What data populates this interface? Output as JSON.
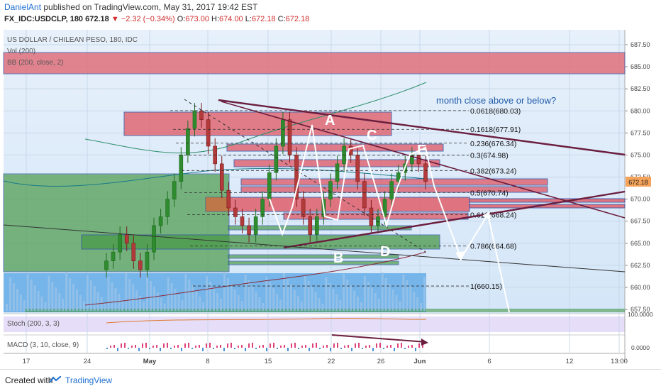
{
  "header": {
    "author": "DanielAnt",
    "published": "published on TradingView.com, May 31, 2017 19:42 EST",
    "symbol": "FX_IDC:USDCLP, 180",
    "last": "672.18",
    "change": "▼ −2.32 (−0.34%)",
    "o_label": "O:",
    "o": "673.00",
    "h_label": "H:",
    "h": "674.00",
    "l_label": "L:",
    "l": "672.18",
    "c_label": "C:",
    "c": "672.18"
  },
  "legend": {
    "pair": "US DOLLAR / CHILEAN PESO, 180, IDC",
    "vol": "Vol (200)",
    "bb": "BB (200, close, 2)",
    "stoch": "Stoch (200, 3, 3)",
    "macd": "MACD (3, 10, close, 9)"
  },
  "annotation": "month close above or below?",
  "wave_labels": [
    "A",
    "B",
    "C",
    "D",
    "E"
  ],
  "fib_levels": [
    {
      "label": "0.0618(680.03)",
      "value": 680.03
    },
    {
      "label": "0.1618(677.91)",
      "value": 677.91
    },
    {
      "label": "0.236(676.34)",
      "value": 676.34
    },
    {
      "label": "0.3(674.98)",
      "value": 674.98
    },
    {
      "label": "0.382(673.24)",
      "value": 673.24
    },
    {
      "label": "0.5(670.74)",
      "value": 670.74
    },
    {
      "label": "0.618(668.24)",
      "value": 668.24
    },
    {
      "label": "0.786(664.68)",
      "value": 664.68
    },
    {
      "label": "1(660.15)",
      "value": 660.15
    }
  ],
  "price_badge": "672.18",
  "chart_data": {
    "type": "candlestick",
    "price_axis": [
      "687.50",
      "685.00",
      "682.50",
      "680.00",
      "677.50",
      "675.00",
      "672.50",
      "670.00",
      "667.50",
      "665.00",
      "662.50",
      "660.00",
      "657.50"
    ],
    "ylim": [
      657.5,
      687.5
    ],
    "time_axis": [
      "17",
      "24",
      "May",
      "8",
      "15",
      "22",
      "26",
      "Jun",
      "6",
      "12",
      "13:00"
    ],
    "indicator_axis": [
      "100.0000",
      "0.0000"
    ],
    "close_approx": [
      663,
      664,
      666,
      665,
      663,
      662,
      664,
      667,
      668,
      670,
      672,
      675,
      678,
      680,
      679,
      676,
      674,
      671,
      669,
      668,
      667,
      666,
      668,
      670,
      673,
      676,
      679,
      675,
      670,
      668,
      666,
      668,
      670,
      672,
      674,
      676,
      675,
      672,
      669,
      667,
      668,
      670,
      672,
      673,
      674,
      675,
      674,
      672
    ]
  },
  "footer": {
    "created": "Created with",
    "brand": "TradingView"
  },
  "colors": {
    "zone_red": "#e0606c",
    "zone_green": "#4a9a4a",
    "zone_blue": "#5ea9e6",
    "trendline": "#6b1e3e",
    "annotation": "#1e5aa8",
    "badge": "#f5a35a"
  }
}
